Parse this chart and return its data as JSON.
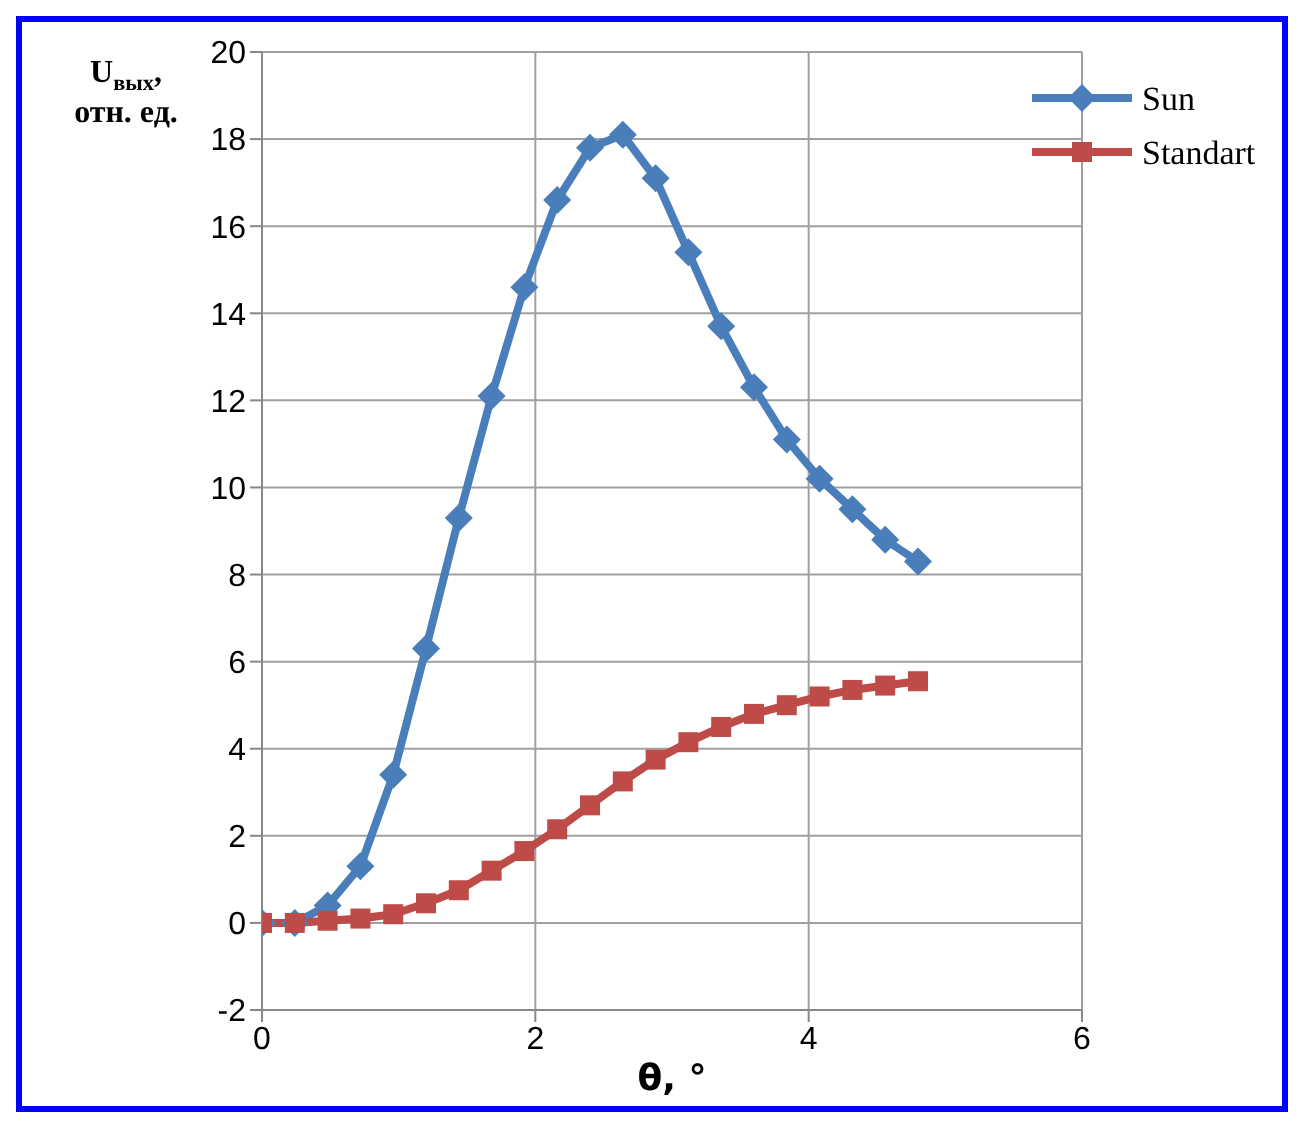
{
  "chart_data": {
    "type": "line",
    "xlabel": "θ, °",
    "ylabel": "U$_{вых}$, отн. ед.",
    "x": [
      0,
      0.24,
      0.48,
      0.72,
      0.96,
      1.2,
      1.44,
      1.68,
      1.92,
      2.16,
      2.4,
      2.64,
      2.88,
      3.12,
      3.36,
      3.6,
      3.84,
      4.08,
      4.32,
      4.56,
      4.8
    ],
    "series": [
      {
        "name": "Sun",
        "color": "#4a7ebb",
        "marker": "diamond",
        "values": [
          0,
          0,
          0.4,
          1.3,
          3.4,
          6.3,
          9.3,
          12.1,
          14.6,
          16.6,
          17.8,
          18.1,
          17.1,
          15.4,
          13.7,
          12.3,
          11.1,
          10.2,
          9.5,
          8.8,
          8.3
        ]
      },
      {
        "name": "Standart",
        "color": "#be4b48",
        "marker": "square",
        "values": [
          0,
          0,
          0.05,
          0.1,
          0.2,
          0.45,
          0.75,
          1.2,
          1.65,
          2.15,
          2.7,
          3.25,
          3.75,
          4.15,
          4.5,
          4.8,
          5.0,
          5.2,
          5.35,
          5.45,
          5.55
        ]
      }
    ],
    "xlim": [
      0,
      6
    ],
    "xticks": [
      0,
      2,
      4,
      6
    ],
    "ylim": [
      -2,
      20
    ],
    "yticks": [
      -2,
      0,
      2,
      4,
      6,
      8,
      10,
      12,
      14,
      16,
      18,
      20
    ],
    "grid": true,
    "legend": "top right",
    "line_style": "solid"
  }
}
